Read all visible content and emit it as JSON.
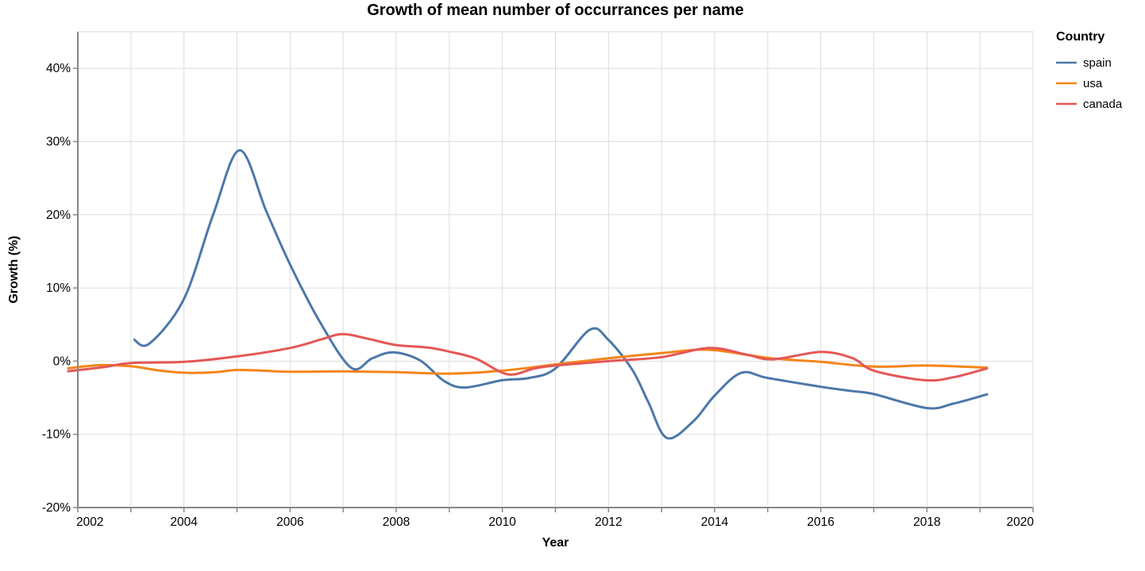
{
  "title": "Growth of mean number of occurrances per name",
  "legend": {
    "title": "Country"
  },
  "axes": {
    "x_title": "Year",
    "y_title": "Growth (%)"
  },
  "colors": {
    "spain": "#4c78a8",
    "usa": "#f58518",
    "canada": "#e45756",
    "grid": "#dddddd",
    "domain": "#888888",
    "tick": "#888888",
    "text": "#000000",
    "background": "#ffffff"
  },
  "chart_data": {
    "type": "line",
    "title": "Growth of mean number of occurrances per name",
    "xlabel": "Year",
    "ylabel": "Growth (%)",
    "xlim": [
      2002,
      2020
    ],
    "ylim": [
      -20,
      45
    ],
    "grid": true,
    "legend_title": "Country",
    "legend_position": "right",
    "x_minor_tick_step": 1,
    "x_ticks": [
      2002,
      2004,
      2006,
      2008,
      2010,
      2012,
      2014,
      2016,
      2018,
      2020
    ],
    "x_tick_labels": [
      "2002",
      "2004",
      "2006",
      "2008",
      "2010",
      "2012",
      "2014",
      "2016",
      "2018",
      "2020"
    ],
    "y_ticks": [
      -20,
      -10,
      0,
      10,
      20,
      30,
      40
    ],
    "y_tick_labels": [
      "-20%",
      "-10%",
      "0%",
      "10%",
      "20%",
      "30%",
      "40%"
    ],
    "series": [
      {
        "name": "spain",
        "color": "#4c78a8",
        "points": [
          [
            2003.05,
            3.0
          ],
          [
            2003.35,
            2.4
          ],
          [
            2004.0,
            8.5
          ],
          [
            2004.55,
            20.0
          ],
          [
            2005.05,
            28.8
          ],
          [
            2005.55,
            20.5
          ],
          [
            2006.0,
            13.2
          ],
          [
            2006.55,
            5.5
          ],
          [
            2007.15,
            -0.9
          ],
          [
            2007.55,
            0.4
          ],
          [
            2007.95,
            1.2
          ],
          [
            2008.45,
            0.1
          ],
          [
            2008.9,
            -2.7
          ],
          [
            2009.3,
            -3.6
          ],
          [
            2010.0,
            -2.6
          ],
          [
            2010.5,
            -2.3
          ],
          [
            2011.0,
            -1.0
          ],
          [
            2011.65,
            4.3
          ],
          [
            2012.0,
            2.9
          ],
          [
            2012.45,
            -1.2
          ],
          [
            2012.75,
            -5.6
          ],
          [
            2013.1,
            -10.5
          ],
          [
            2013.6,
            -8.2
          ],
          [
            2014.0,
            -4.7
          ],
          [
            2014.5,
            -1.6
          ],
          [
            2015.0,
            -2.3
          ],
          [
            2016.0,
            -3.5
          ],
          [
            2016.6,
            -4.1
          ],
          [
            2017.0,
            -4.5
          ],
          [
            2018.0,
            -6.4
          ],
          [
            2018.5,
            -5.8
          ],
          [
            2019.15,
            -4.5
          ]
        ]
      },
      {
        "name": "usa",
        "color": "#f58518",
        "points": [
          [
            2001.8,
            -1.0
          ],
          [
            2002.4,
            -0.55
          ],
          [
            2003.0,
            -0.7
          ],
          [
            2003.6,
            -1.35
          ],
          [
            2004.1,
            -1.6
          ],
          [
            2004.6,
            -1.5
          ],
          [
            2005.0,
            -1.2
          ],
          [
            2005.5,
            -1.3
          ],
          [
            2006.0,
            -1.45
          ],
          [
            2007.0,
            -1.4
          ],
          [
            2008.0,
            -1.5
          ],
          [
            2009.0,
            -1.7
          ],
          [
            2010.0,
            -1.3
          ],
          [
            2011.0,
            -0.45
          ],
          [
            2012.0,
            0.4
          ],
          [
            2013.0,
            1.1
          ],
          [
            2013.9,
            1.55
          ],
          [
            2015.0,
            0.45
          ],
          [
            2016.0,
            -0.1
          ],
          [
            2017.0,
            -0.75
          ],
          [
            2018.0,
            -0.6
          ],
          [
            2019.15,
            -0.9
          ]
        ]
      },
      {
        "name": "canada",
        "color": "#e45756",
        "points": [
          [
            2001.8,
            -1.4
          ],
          [
            2002.5,
            -0.8
          ],
          [
            2003.0,
            -0.25
          ],
          [
            2004.0,
            -0.1
          ],
          [
            2005.0,
            0.65
          ],
          [
            2006.0,
            1.8
          ],
          [
            2006.6,
            3.0
          ],
          [
            2007.0,
            3.7
          ],
          [
            2007.5,
            3.0
          ],
          [
            2008.0,
            2.2
          ],
          [
            2008.6,
            1.85
          ],
          [
            2009.0,
            1.3
          ],
          [
            2009.5,
            0.35
          ],
          [
            2010.1,
            -1.8
          ],
          [
            2010.6,
            -1.0
          ],
          [
            2011.0,
            -0.6
          ],
          [
            2012.0,
            0.0
          ],
          [
            2013.0,
            0.55
          ],
          [
            2013.9,
            1.8
          ],
          [
            2014.6,
            0.9
          ],
          [
            2015.1,
            0.25
          ],
          [
            2016.0,
            1.25
          ],
          [
            2016.6,
            0.4
          ],
          [
            2017.0,
            -1.3
          ],
          [
            2017.95,
            -2.6
          ],
          [
            2018.5,
            -2.2
          ],
          [
            2019.15,
            -0.95
          ]
        ]
      }
    ]
  }
}
